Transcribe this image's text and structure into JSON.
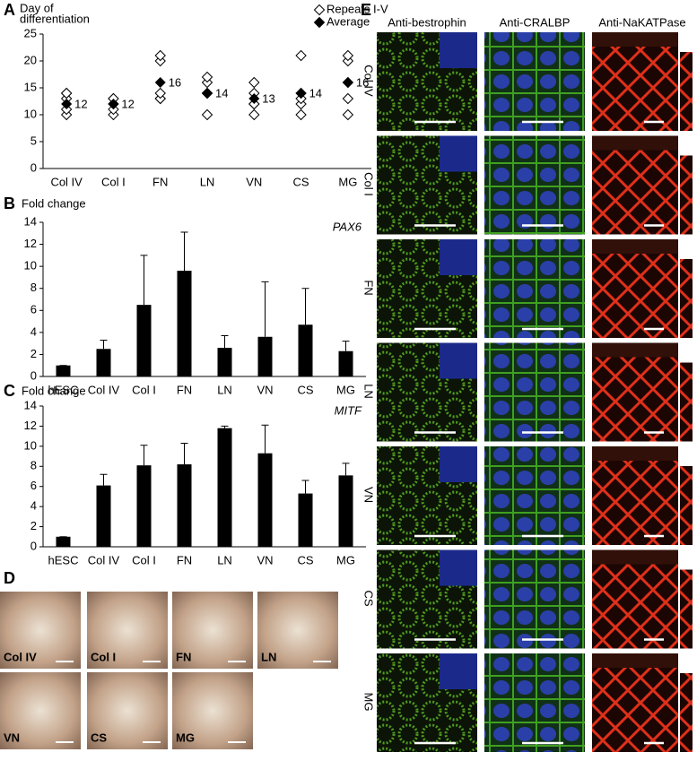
{
  "chart_data": [
    {
      "type": "scatter",
      "panel_label": "A",
      "ylabel_lines": [
        "Day of",
        "differentiation"
      ],
      "categories": [
        "Col IV",
        "Col I",
        "FN",
        "LN",
        "VN",
        "CS",
        "MG"
      ],
      "series": [
        {
          "name": "Repeats I-V",
          "color": "#000000",
          "marker": "open-diamond",
          "values": [
            [
              10,
              11,
              13,
              14,
              14
            ],
            [
              10,
              11,
              12,
              13,
              13
            ],
            [
              13,
              13,
              14,
              20,
              21
            ],
            [
              10,
              14,
              14,
              16,
              17
            ],
            [
              10,
              12,
              12,
              14,
              16
            ],
            [
              10,
              12,
              13,
              14,
              21
            ],
            [
              10,
              13,
              16,
              20,
              21
            ]
          ]
        },
        {
          "name": "Average",
          "color": "#000000",
          "marker": "filled-diamond",
          "values": [
            12,
            12,
            16,
            14,
            13,
            14,
            16
          ]
        }
      ],
      "ylim": [
        0,
        25
      ],
      "yticks": [
        0,
        5,
        10,
        15,
        20,
        25
      ],
      "legend": "top-right"
    },
    {
      "type": "bar",
      "panel_label": "B",
      "ylabel": "Fold change",
      "annotation": "PAX6",
      "color": "#000000",
      "categories": [
        "hESC",
        "Col IV",
        "Col I",
        "FN",
        "LN",
        "VN",
        "CS",
        "MG"
      ],
      "values": [
        1,
        2.5,
        6.5,
        9.6,
        2.6,
        3.6,
        4.7,
        2.3
      ],
      "errors": [
        0,
        0.8,
        4.5,
        3.5,
        1.1,
        5,
        3.3,
        0.9
      ],
      "ylim": [
        0,
        14
      ],
      "yticks": [
        0,
        2,
        4,
        6,
        8,
        10,
        12,
        14
      ]
    },
    {
      "type": "bar",
      "panel_label": "C",
      "ylabel": "Fold change",
      "annotation": "MITF",
      "color": "#000000",
      "categories": [
        "hESC",
        "Col IV",
        "Col I",
        "FN",
        "LN",
        "VN",
        "CS",
        "MG"
      ],
      "values": [
        1,
        6.1,
        8.1,
        8.2,
        11.8,
        9.3,
        5.3,
        7.1
      ],
      "errors": [
        0,
        1.1,
        2,
        2.1,
        0.2,
        2.8,
        1.3,
        1.2
      ],
      "ylim": [
        0,
        14
      ],
      "yticks": [
        0,
        2,
        4,
        6,
        8,
        10,
        12,
        14
      ]
    }
  ],
  "panel_d": {
    "panel_label": "D",
    "labels": [
      "Col IV",
      "Col I",
      "FN",
      "LN",
      "VN",
      "CS",
      "MG"
    ]
  },
  "panel_e": {
    "panel_label": "E",
    "columns": [
      "Anti-bestrophin",
      "Anti-CRALBP",
      "Anti-NaKATPase"
    ],
    "rows": [
      "Col IV",
      "Col I",
      "FN",
      "LN",
      "VN",
      "CS",
      "MG"
    ]
  }
}
